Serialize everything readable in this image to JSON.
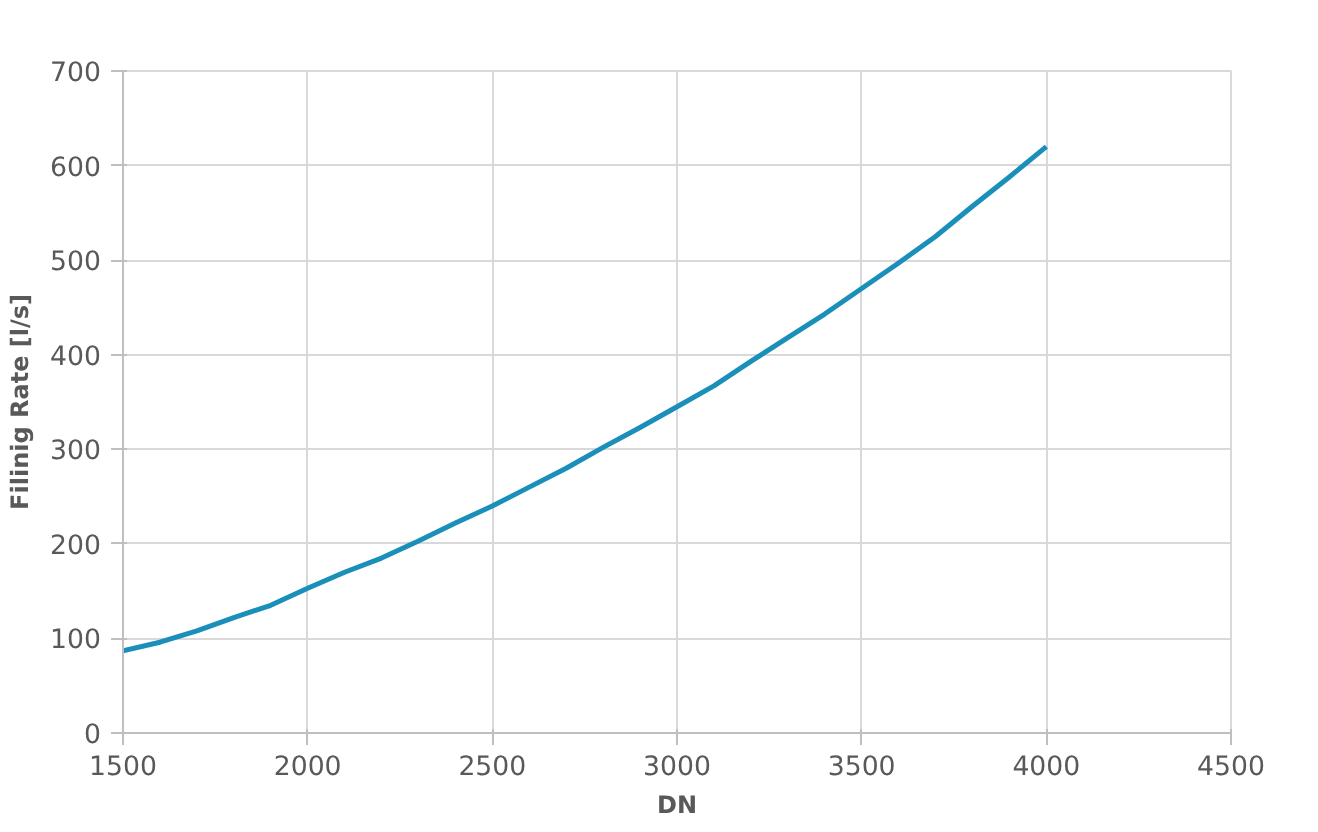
{
  "chart_data": {
    "type": "line",
    "xlabel": "DN",
    "ylabel": "Filinig Rate [l/s]",
    "x": [
      1500,
      1600,
      1700,
      1800,
      1900,
      2000,
      2100,
      2200,
      2300,
      2400,
      2500,
      2600,
      2700,
      2800,
      2900,
      3000,
      3100,
      3200,
      3300,
      3400,
      3500,
      3600,
      3700,
      3800,
      3900,
      4000
    ],
    "series": [
      {
        "color": "#1a8fba",
        "values": [
          87,
          96,
          108,
          122,
          135,
          153,
          170,
          185,
          203,
          222,
          240,
          260,
          280,
          302,
          323,
          345,
          367,
          393,
          418,
          443,
          470,
          497,
          525,
          557,
          588,
          620
        ]
      }
    ],
    "xlim": [
      1500,
      4500
    ],
    "xticks": [
      1500,
      2000,
      2500,
      3000,
      3500,
      4000,
      4500
    ],
    "ylim": [
      0,
      700
    ],
    "yticks": [
      0,
      100,
      200,
      300,
      400,
      500,
      600,
      700
    ],
    "grid": true,
    "marker": "none",
    "line_style": "solid"
  }
}
